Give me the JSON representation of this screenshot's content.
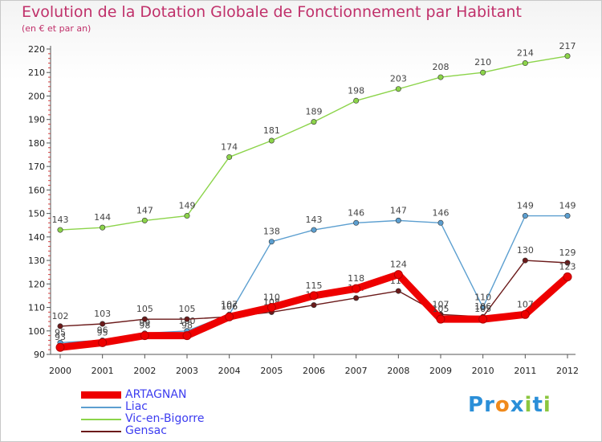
{
  "chart_data": {
    "type": "line",
    "title": "Evolution de la Dotation Globale de Fonctionnement par Habitant",
    "subtitle": "(en € et par an)",
    "x": [
      "2000",
      "2001",
      "2002",
      "2003",
      "2004",
      "2005",
      "2006",
      "2007",
      "2008",
      "2009",
      "2010",
      "2011",
      "2012"
    ],
    "ylim": [
      90,
      220
    ],
    "yticks": [
      90,
      100,
      110,
      120,
      130,
      140,
      150,
      160,
      170,
      180,
      190,
      200,
      210,
      220
    ],
    "grid": false,
    "legend_position": "bottom-left",
    "series": [
      {
        "name": "Vic-en-Bigorre",
        "color": "#8cd44a",
        "values": [
          143,
          144,
          147,
          149,
          174,
          181,
          189,
          198,
          203,
          208,
          210,
          214,
          217
        ]
      },
      {
        "name": "Liac",
        "color": "#5c9fd0",
        "values": [
          95,
          96,
          99,
          100,
          107,
          138,
          143,
          146,
          147,
          146,
          110,
          149,
          149
        ]
      },
      {
        "name": "Gensac",
        "color": "#6b1a1a",
        "values": [
          102,
          103,
          105,
          105,
          106,
          108,
          111,
          114,
          117,
          107,
          106,
          130,
          129
        ]
      },
      {
        "name": "ARTAGNAN",
        "color": "#ee0000",
        "values": [
          93,
          95,
          98,
          98,
          106,
          110,
          115,
          118,
          124,
          105,
          105,
          107,
          123
        ]
      }
    ]
  },
  "legend": {
    "items": [
      "ARTAGNAN",
      "Liac",
      "Vic-en-Bigorre",
      "Gensac"
    ]
  },
  "logo": {
    "text": "Proxiti",
    "letters": [
      "P",
      "r",
      "o",
      "x",
      "i",
      "t",
      "i"
    ],
    "colors": [
      "#2b8fd8",
      "#2b8fd8",
      "#f08a1c",
      "#2b8fd8",
      "#8cc63f",
      "#2b8fd8",
      "#8cc63f"
    ]
  }
}
